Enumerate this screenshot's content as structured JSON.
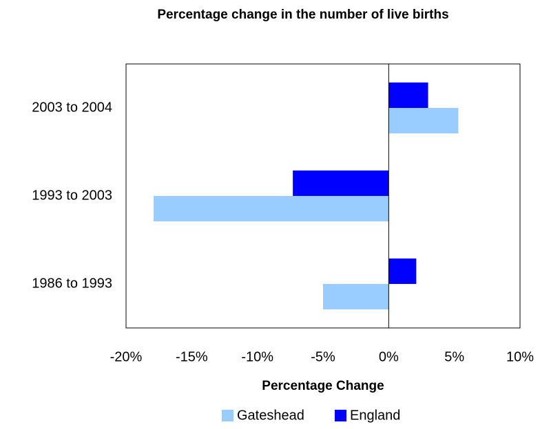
{
  "chart_data": {
    "type": "hbar",
    "title": "Percentage change in the number of live births",
    "x_label": "Percentage Change",
    "categories": [
      "2003 to 2004",
      "1993 to 2003",
      "1986 to 1993"
    ],
    "series": [
      {
        "name": "Gateshead",
        "color": "#99ccff",
        "values": [
          5.3,
          -17.9,
          -5.0
        ]
      },
      {
        "name": "England",
        "color": "#0000ff",
        "values": [
          3.0,
          -7.3,
          2.1
        ]
      }
    ],
    "xlim": [
      -20,
      10
    ],
    "xticks": [
      {
        "value": -20,
        "label": "-20%"
      },
      {
        "value": -15,
        "label": "-15%"
      },
      {
        "value": -10,
        "label": "-10%"
      },
      {
        "value": -5,
        "label": "-5%"
      },
      {
        "value": 0,
        "label": "0%"
      },
      {
        "value": 5,
        "label": "5%"
      },
      {
        "value": 10,
        "label": "10%"
      }
    ],
    "grid": false,
    "legend": "bottom"
  }
}
